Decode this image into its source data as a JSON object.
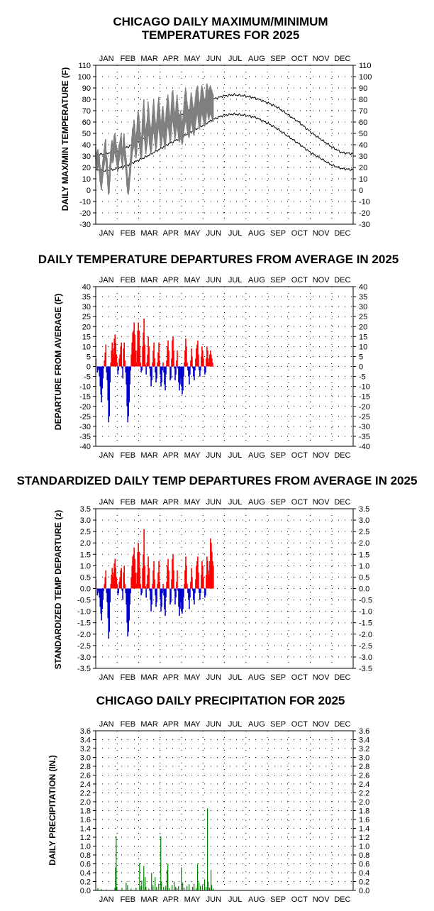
{
  "months": [
    "JAN",
    "FEB",
    "MAR",
    "APR",
    "MAY",
    "JUN",
    "JUL",
    "AUG",
    "SEP",
    "OCT",
    "NOV",
    "DEC"
  ],
  "colors": {
    "actual": "#808080",
    "normal": "#000000",
    "above": "#ff0000",
    "below": "#0000cc",
    "precip": "#008000",
    "grid": "#000000"
  },
  "chart_data": [
    {
      "type": "line",
      "title_line1": "CHICAGO DAILY MAXIMUM/MINIMUM",
      "title_line2": "TEMPERATURES FOR 2025",
      "ylabel": "DAILY MAX/MIN TEMPERATURE (F)",
      "ylim": [
        -30,
        110
      ],
      "yticks": [
        "110",
        "100",
        "90",
        "80",
        "70",
        "60",
        "50",
        "40",
        "30",
        "20",
        "10",
        "0",
        "-10",
        "-20",
        "-30"
      ],
      "x_unit": "day of year",
      "normal_high": {
        "days": [
          1,
          15,
          32,
          46,
          60,
          74,
          91,
          105,
          121,
          135,
          152,
          166,
          182,
          196,
          213,
          227,
          244,
          258,
          274,
          288,
          305,
          319,
          335,
          349,
          365
        ],
        "values": [
          31,
          32,
          35,
          38,
          43,
          48,
          55,
          61,
          66,
          71,
          76,
          80,
          83,
          84,
          83,
          81,
          77,
          73,
          66,
          60,
          51,
          45,
          38,
          33,
          32
        ]
      },
      "normal_low": {
        "days": [
          1,
          15,
          32,
          46,
          60,
          74,
          91,
          105,
          121,
          135,
          152,
          166,
          182,
          196,
          213,
          227,
          244,
          258,
          274,
          288,
          305,
          319,
          335,
          349,
          365
        ],
        "values": [
          18,
          17,
          19,
          22,
          26,
          30,
          36,
          41,
          46,
          51,
          57,
          62,
          66,
          67,
          66,
          64,
          59,
          54,
          47,
          41,
          33,
          28,
          22,
          19,
          18
        ]
      },
      "actual_high": {
        "start_day": 1,
        "values": [
          38,
          34,
          30,
          36,
          32,
          30,
          22,
          18,
          14,
          20,
          26,
          31,
          36,
          42,
          45,
          30,
          28,
          18,
          12,
          10,
          22,
          34,
          40,
          44,
          38,
          42,
          48,
          50,
          46,
          40,
          36,
          30,
          34,
          40,
          42,
          46,
          50,
          38,
          32,
          46,
          50,
          40,
          34,
          28,
          18,
          10,
          8,
          12,
          20,
          28,
          38,
          46,
          54,
          56,
          62,
          58,
          50,
          44,
          52,
          64,
          70,
          66,
          58,
          50,
          44,
          48,
          62,
          72,
          80,
          66,
          56,
          50,
          58,
          64,
          78,
          72,
          62,
          58,
          52,
          56,
          66,
          74,
          80,
          70,
          62,
          56,
          60,
          68,
          76,
          82,
          74,
          66,
          58,
          62,
          70,
          74,
          68,
          60,
          56,
          64,
          72,
          80,
          84,
          78,
          70,
          64,
          66,
          76,
          86,
          88,
          80,
          72,
          66,
          70,
          78,
          84,
          76,
          68,
          62,
          66,
          70,
          64,
          58,
          62,
          70,
          78,
          84,
          90,
          86,
          78,
          74,
          70,
          66,
          72,
          80,
          86,
          82,
          76,
          72,
          70,
          76,
          82,
          88,
          90,
          92,
          86,
          78,
          76,
          80,
          88,
          92,
          90,
          86,
          82,
          78,
          80,
          88,
          94,
          92,
          88,
          86,
          90,
          92,
          90,
          88,
          86,
          84
        ]
      },
      "actual_low": {
        "start_day": 1,
        "values": [
          26,
          22,
          18,
          22,
          20,
          16,
          8,
          4,
          0,
          6,
          12,
          18,
          22,
          26,
          30,
          18,
          14,
          4,
          -4,
          -2,
          8,
          18,
          24,
          28,
          24,
          26,
          32,
          34,
          30,
          26,
          22,
          16,
          20,
          26,
          28,
          32,
          34,
          24,
          18,
          30,
          32,
          26,
          20,
          14,
          4,
          -2,
          -4,
          0,
          8,
          14,
          22,
          28,
          34,
          36,
          40,
          38,
          32,
          28,
          34,
          42,
          46,
          44,
          38,
          32,
          28,
          30,
          40,
          48,
          54,
          44,
          36,
          32,
          38,
          42,
          52,
          48,
          40,
          36,
          32,
          36,
          44,
          50,
          54,
          46,
          40,
          36,
          38,
          46,
          52,
          58,
          50,
          44,
          38,
          40,
          46,
          50,
          46,
          40,
          36,
          42,
          48,
          54,
          58,
          54,
          48,
          42,
          44,
          52,
          60,
          62,
          56,
          50,
          44,
          48,
          54,
          58,
          52,
          46,
          42,
          44,
          48,
          44,
          40,
          42,
          48,
          54,
          58,
          62,
          60,
          54,
          50,
          48,
          46,
          50,
          56,
          62,
          58,
          54,
          50,
          48,
          52,
          58,
          62,
          66,
          68,
          62,
          56,
          54,
          58,
          64,
          68,
          66,
          62,
          60,
          56,
          58,
          64,
          70,
          68,
          64,
          62,
          66,
          68,
          66,
          64,
          62,
          60
        ]
      },
      "xlabel": ""
    },
    {
      "type": "bar",
      "title": "DAILY TEMPERATURE DEPARTURES FROM AVERAGE IN 2025",
      "ylabel": "DEPARTURE FROM AVERAGE (F)",
      "ylim": [
        -40,
        40
      ],
      "yticks": [
        "40",
        "35",
        "30",
        "25",
        "20",
        "15",
        "10",
        "5",
        "0",
        "-5",
        "-10",
        "-15",
        "-20",
        "-25",
        "-30",
        "-35",
        "-40"
      ],
      "start_day": 1,
      "values": [
        4,
        0,
        -3,
        -1,
        -2,
        -5,
        -10,
        -14,
        -18,
        -11,
        -6,
        -1,
        3,
        7,
        11,
        -3,
        -7,
        -17,
        -28,
        -25,
        -8,
        2,
        8,
        12,
        6,
        9,
        14,
        16,
        12,
        6,
        2,
        -4,
        -2,
        4,
        6,
        10,
        12,
        -1,
        -6,
        9,
        12,
        3,
        -3,
        -9,
        -20,
        -28,
        -25,
        -18,
        -9,
        -2,
        6,
        12,
        17,
        18,
        22,
        16,
        8,
        2,
        8,
        18,
        22,
        18,
        10,
        2,
        -3,
        -2,
        10,
        17,
        24,
        11,
        1,
        -4,
        2,
        6,
        15,
        10,
        -1,
        -5,
        -10,
        -7,
        2,
        8,
        12,
        4,
        -3,
        -8,
        -6,
        2,
        7,
        12,
        3,
        -4,
        -10,
        -8,
        -2,
        2,
        -3,
        -9,
        -12,
        -4,
        3,
        10,
        13,
        8,
        0,
        -7,
        -6,
        4,
        13,
        15,
        8,
        -1,
        -7,
        -4,
        3,
        8,
        -1,
        -8,
        -12,
        -9,
        -6,
        -10,
        -14,
        -12,
        -5,
        2,
        8,
        14,
        10,
        2,
        -2,
        -5,
        -9,
        -4,
        3,
        9,
        5,
        -1,
        -5,
        -7,
        -2,
        4,
        9,
        11,
        13,
        6,
        -2,
        -5,
        -2,
        5,
        10,
        8,
        4,
        0,
        -4,
        -3,
        4,
        10,
        8,
        4,
        2,
        6,
        8,
        6,
        4,
        2,
        0
      ]
    },
    {
      "type": "bar",
      "title": "STANDARDIZED DAILY TEMP DEPARTURES FROM AVERAGE IN 2025",
      "ylabel": "STANDARDIZED TEMP DEPARTURE (z)",
      "ylim": [
        -3.5,
        3.5
      ],
      "yticks": [
        "3.5",
        "3.0",
        "2.5",
        "2.0",
        "1.5",
        "1.0",
        "0.5",
        "0.0",
        "-0.5",
        "-1.0",
        "-1.5",
        "-2.0",
        "-2.5",
        "-3.0",
        "-3.5"
      ],
      "start_day": 1,
      "values": [
        0.4,
        0.0,
        -0.3,
        -0.1,
        -0.2,
        -0.4,
        -0.8,
        -1.1,
        -1.4,
        -0.9,
        -0.5,
        -0.1,
        0.2,
        0.5,
        0.8,
        -0.2,
        -0.6,
        -1.3,
        -2.2,
        -1.9,
        -0.6,
        0.2,
        0.6,
        0.9,
        0.5,
        0.7,
        1.1,
        1.3,
        0.9,
        0.5,
        0.2,
        -0.3,
        -0.2,
        0.3,
        0.5,
        0.8,
        0.9,
        -0.1,
        -0.5,
        0.7,
        1.0,
        0.2,
        -0.2,
        -0.7,
        -1.5,
        -2.1,
        -1.9,
        -1.4,
        -0.7,
        -0.2,
        0.5,
        1.0,
        1.4,
        1.5,
        1.8,
        1.3,
        0.7,
        0.2,
        0.7,
        1.6,
        2.0,
        1.6,
        0.9,
        0.2,
        -0.3,
        -0.2,
        0.9,
        1.5,
        2.6,
        1.0,
        0.1,
        -0.4,
        0.2,
        0.6,
        1.4,
        0.9,
        -0.1,
        -0.5,
        -1.0,
        -0.7,
        0.2,
        0.8,
        1.2,
        0.4,
        -0.3,
        -0.8,
        -0.6,
        0.2,
        0.7,
        1.2,
        0.3,
        -0.4,
        -1.0,
        -0.8,
        -0.2,
        0.2,
        -0.3,
        -0.9,
        -1.2,
        -0.4,
        0.3,
        1.0,
        1.3,
        0.8,
        0.0,
        -0.7,
        -0.6,
        0.4,
        1.3,
        1.5,
        0.8,
        -0.1,
        -0.7,
        -0.4,
        0.3,
        0.8,
        -0.1,
        -0.8,
        -1.2,
        -0.9,
        -0.6,
        -1.0,
        -1.1,
        -0.9,
        -0.4,
        0.2,
        0.8,
        1.4,
        1.0,
        0.2,
        -0.2,
        -0.5,
        -0.9,
        -0.4,
        0.3,
        0.9,
        0.5,
        -0.1,
        -0.5,
        -0.7,
        -0.2,
        0.4,
        1.0,
        1.2,
        1.4,
        0.7,
        -0.2,
        -0.5,
        -0.2,
        0.6,
        1.2,
        1.0,
        0.5,
        0.0,
        -0.4,
        -0.3,
        0.6,
        1.4,
        1.2,
        0.8,
        0.6,
        1.2,
        2.2,
        2.0,
        1.6,
        1.2,
        1.0
      ]
    },
    {
      "type": "bar",
      "title": "CHICAGO DAILY PRECIPITATION FOR 2025",
      "ylabel": "DAILY PRECIPITATION (IN.)",
      "ylim": [
        0.0,
        3.6
      ],
      "yticks": [
        "3.6",
        "3.4",
        "3.2",
        "3.0",
        "2.8",
        "2.6",
        "2.4",
        "2.2",
        "2.0",
        "1.8",
        "1.6",
        "1.4",
        "1.2",
        "1.0",
        "0.8",
        "0.6",
        "0.4",
        "0.2",
        "0.0"
      ],
      "events": [
        {
          "day": 4,
          "value": 0.05
        },
        {
          "day": 9,
          "value": 0.03
        },
        {
          "day": 16,
          "value": 0.02
        },
        {
          "day": 28,
          "value": 0.05
        },
        {
          "day": 29,
          "value": 0.52
        },
        {
          "day": 30,
          "value": 1.22
        },
        {
          "day": 31,
          "value": 0.08
        },
        {
          "day": 38,
          "value": 0.06
        },
        {
          "day": 44,
          "value": 0.18
        },
        {
          "day": 46,
          "value": 0.12
        },
        {
          "day": 51,
          "value": 0.04
        },
        {
          "day": 58,
          "value": 0.06
        },
        {
          "day": 63,
          "value": 0.62
        },
        {
          "day": 65,
          "value": 0.1
        },
        {
          "day": 66,
          "value": 0.22
        },
        {
          "day": 69,
          "value": 0.55
        },
        {
          "day": 71,
          "value": 0.3
        },
        {
          "day": 72,
          "value": 0.08
        },
        {
          "day": 76,
          "value": 0.04
        },
        {
          "day": 80,
          "value": 0.4
        },
        {
          "day": 82,
          "value": 0.12
        },
        {
          "day": 85,
          "value": 0.3
        },
        {
          "day": 87,
          "value": 0.08
        },
        {
          "day": 90,
          "value": 0.15
        },
        {
          "day": 93,
          "value": 1.22
        },
        {
          "day": 94,
          "value": 0.2
        },
        {
          "day": 97,
          "value": 0.08
        },
        {
          "day": 100,
          "value": 0.1
        },
        {
          "day": 102,
          "value": 0.46
        },
        {
          "day": 103,
          "value": 0.6
        },
        {
          "day": 105,
          "value": 0.05
        },
        {
          "day": 109,
          "value": 0.12
        },
        {
          "day": 112,
          "value": 0.2
        },
        {
          "day": 114,
          "value": 0.08
        },
        {
          "day": 116,
          "value": 0.05
        },
        {
          "day": 118,
          "value": 0.1
        },
        {
          "day": 122,
          "value": 0.52
        },
        {
          "day": 124,
          "value": 0.18
        },
        {
          "day": 126,
          "value": 0.06
        },
        {
          "day": 130,
          "value": 0.1
        },
        {
          "day": 133,
          "value": 0.14
        },
        {
          "day": 138,
          "value": 0.08
        },
        {
          "day": 140,
          "value": 0.15
        },
        {
          "day": 143,
          "value": 0.05
        },
        {
          "day": 145,
          "value": 0.6
        },
        {
          "day": 147,
          "value": 0.18
        },
        {
          "day": 149,
          "value": 0.1
        },
        {
          "day": 152,
          "value": 0.12
        },
        {
          "day": 155,
          "value": 0.25
        },
        {
          "day": 157,
          "value": 0.08
        },
        {
          "day": 159,
          "value": 1.85
        },
        {
          "day": 160,
          "value": 0.2
        },
        {
          "day": 162,
          "value": 0.06
        },
        {
          "day": 164,
          "value": 0.46
        },
        {
          "day": 165,
          "value": 0.12
        },
        {
          "day": 167,
          "value": 0.04
        }
      ]
    }
  ]
}
